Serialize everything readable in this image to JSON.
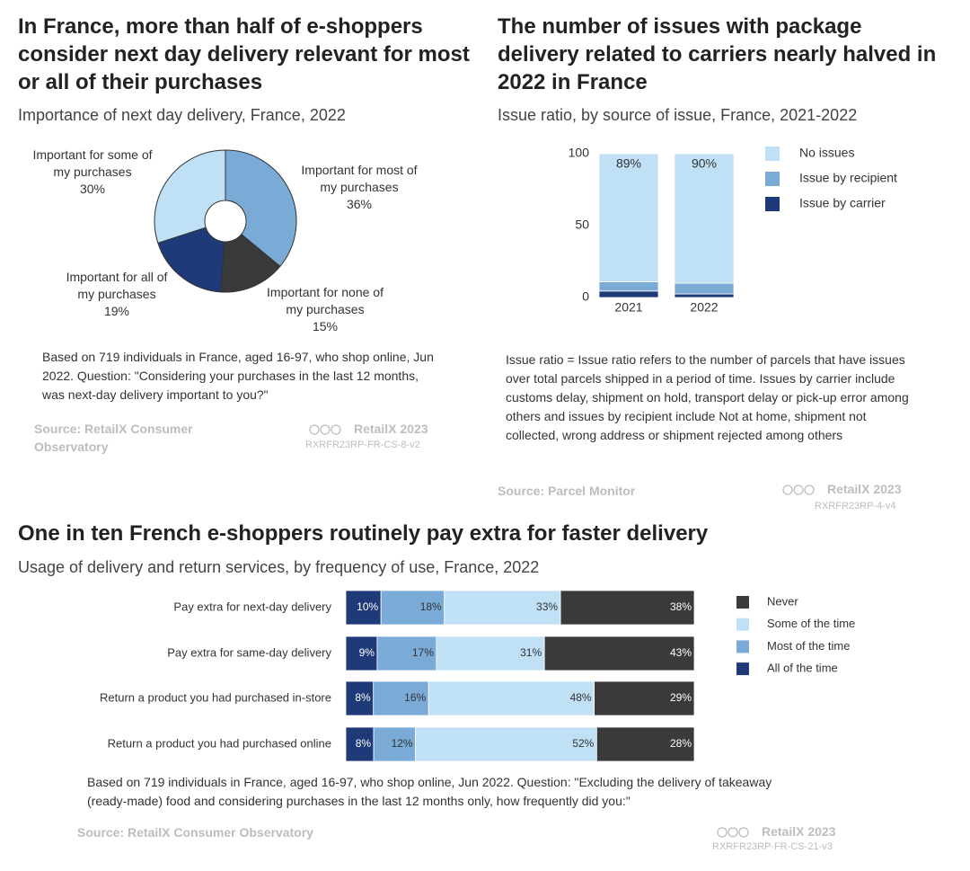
{
  "chart_data": [
    {
      "type": "pie",
      "title": "In France, more than half of e-shoppers consider next day delivery relevant for most or all of their purchases",
      "subtitle": "Importance of next day delivery, France, 2022",
      "categories": [
        "Important for most of my purchases",
        "Important for none of my purchases",
        "Important for all of my purchases",
        "Important for some of my purchases"
      ],
      "values": [
        36,
        15,
        19,
        30
      ],
      "value_labels": [
        "36%",
        "15%",
        "19%",
        "30%"
      ],
      "colors": [
        "#7aaad6",
        "#3a3a3a",
        "#1f3a78",
        "#bfe0f5"
      ],
      "note": "Based on 719 individuals in France, aged 16-97, who shop online, Jun 2022. Question: \"Considering your purchases in the last 12 months, was next-day delivery important to you?\"",
      "source": "Source: RetailX Consumer Observatory",
      "credit": "RetailX 2023",
      "code": "RXRFR23RP-FR-CS-8-v2"
    },
    {
      "type": "stacked-bar",
      "title": "The number of issues with package delivery related to carriers nearly halved in 2022 in France",
      "subtitle": "Issue ratio, by source of issue, France, 2021-2022",
      "categories": [
        "2021",
        "2022"
      ],
      "series": [
        {
          "name": "No issues",
          "color": "#bfe0f5",
          "values": [
            89,
            90
          ],
          "value_labels": [
            "89%",
            "90%"
          ]
        },
        {
          "name": "Issue by recipient",
          "color": "#7aaad6",
          "values": [
            6.5,
            7.5
          ]
        },
        {
          "name": "Issue by carrier",
          "color": "#1f3a78",
          "values": [
            4.5,
            2.5
          ]
        }
      ],
      "ylim": [
        0,
        100
      ],
      "yticks": [
        0,
        50,
        100
      ],
      "note": "Issue ratio = Issue ratio refers to the number of parcels that have issues over total parcels shipped in a period of time. Issues by carrier include customs delay, shipment on hold, transport delay or pick-up error among others and issues by recipient include Not at home, shipment not collected, wrong address or shipment rejected among others",
      "source": "Source: Parcel Monitor",
      "credit": "RetailX 2023",
      "code": "RXRFR23RP-4-v4"
    },
    {
      "type": "stacked-barh",
      "title": "One in ten French e-shoppers routinely pay extra for faster delivery",
      "subtitle": "Usage of delivery and return services, by frequency of use, France, 2022",
      "categories": [
        "Pay extra for next-day delivery",
        "Pay extra for same-day delivery",
        "Return a product you had purchased in-store",
        "Return a product you had purchased online"
      ],
      "series": [
        {
          "name": "All of the time",
          "color": "#1f3a78",
          "values": [
            10,
            9,
            8,
            8
          ],
          "value_labels": [
            "10%",
            "9%",
            "8%",
            "8%"
          ]
        },
        {
          "name": "Most of the time",
          "color": "#7aaad6",
          "values": [
            18,
            17,
            16,
            12
          ],
          "value_labels": [
            "18%",
            "17%",
            "16%",
            "12%"
          ]
        },
        {
          "name": "Some of the time",
          "color": "#bfe0f5",
          "values": [
            33,
            31,
            48,
            52
          ],
          "value_labels": [
            "33%",
            "31%",
            "48%",
            "52%"
          ]
        },
        {
          "name": "Never",
          "color": "#3a3a3a",
          "values": [
            38,
            43,
            29,
            28
          ],
          "value_labels": [
            "38%",
            "43%",
            "29%",
            "28%"
          ]
        }
      ],
      "note": "Based on 719 individuals in France, aged 16-97, who shop online, Jun 2022. Question: \"Excluding the delivery of takeaway (ready-made) food and considering purchases in the last 12 months only, how frequently did you:\"",
      "source": "Source: RetailX Consumer Observatory",
      "credit": "RetailX 2023",
      "code": "RXRFR23RP-FR-CS-21-v3"
    }
  ]
}
